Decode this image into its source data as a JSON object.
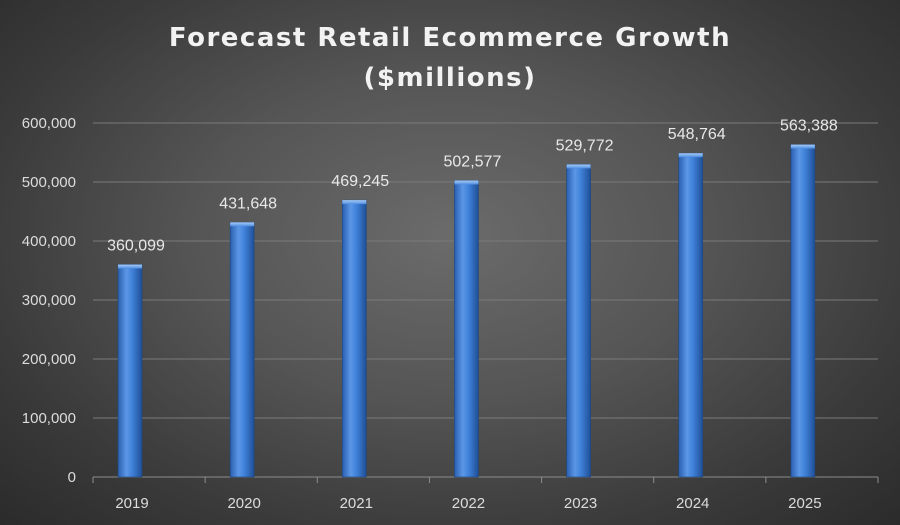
{
  "chart_data": {
    "type": "bar",
    "title": "Forecast Retail Ecommerce Growth",
    "subtitle": "($millions)",
    "categories": [
      "2019",
      "2020",
      "2021",
      "2022",
      "2023",
      "2024",
      "2025"
    ],
    "values": [
      360099,
      431648,
      469245,
      502577,
      529772,
      548764,
      563388
    ],
    "value_labels": [
      "360,099",
      "431,648",
      "469,245",
      "502,577",
      "529,772",
      "548,764",
      "563,388"
    ],
    "y_ticks": [
      0,
      100000,
      200000,
      300000,
      400000,
      500000,
      600000
    ],
    "y_tick_labels": [
      "0",
      "100,000",
      "200,000",
      "300,000",
      "400,000",
      "500,000",
      "600,000"
    ],
    "ylim": [
      0,
      600000
    ],
    "grid": true,
    "legend": "none",
    "colors": {
      "bar_light": "#6fa6ea",
      "bar_mid": "#3a7bd5",
      "bar_dark": "#1f4f96",
      "grid": "#7a7a7a",
      "text": "#e6e6e6"
    }
  }
}
